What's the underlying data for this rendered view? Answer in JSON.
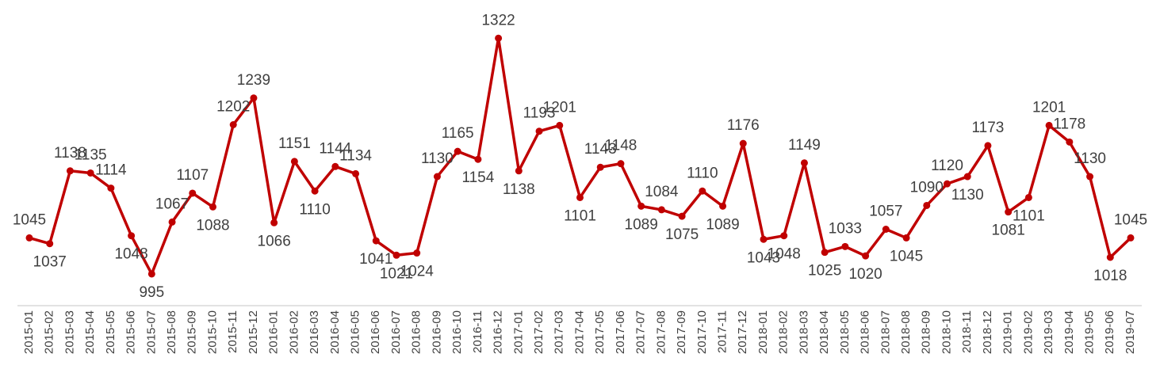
{
  "chart_data": {
    "type": "line",
    "x": [
      "2015-01",
      "2015-02",
      "2015-03",
      "2015-04",
      "2015-05",
      "2015-06",
      "2015-07",
      "2015-08",
      "2015-09",
      "2015-10",
      "2015-11",
      "2015-12",
      "2016-01",
      "2016-02",
      "2016-03",
      "2016-04",
      "2016-05",
      "2016-06",
      "2016-07",
      "2016-08",
      "2016-09",
      "2016-10",
      "2016-11",
      "2016-12",
      "2017-01",
      "2017-02",
      "2017-03",
      "2017-04",
      "2017-05",
      "2017-06",
      "2017-07",
      "2017-08",
      "2017-09",
      "2017-10",
      "2017-11",
      "2017-12",
      "2018-01",
      "2018-02",
      "2018-03",
      "2018-04",
      "2018-05",
      "2018-06",
      "2018-07",
      "2018-08",
      "2018-09",
      "2018-10",
      "2018-11",
      "2018-12",
      "2019-01",
      "2019-02",
      "2019-03",
      "2019-04",
      "2019-05",
      "2019-06",
      "2019-07"
    ],
    "series": [
      {
        "name": null,
        "color": "#c00000",
        "values": [
          1045,
          1037,
          1138,
          1135,
          1114,
          1048,
          995,
          1067,
          1107,
          1088,
          1202,
          1239,
          1066,
          1151,
          1110,
          1144,
          1134,
          1041,
          1021,
          1024,
          1130,
          1165,
          1154,
          1322,
          1138,
          1193,
          1201,
          1101,
          1143,
          1148,
          1089,
          1084,
          1075,
          1110,
          1089,
          1176,
          1043,
          1048,
          1149,
          1025,
          1033,
          1020,
          1057,
          1045,
          1090,
          1120,
          1130,
          1173,
          1081,
          1101,
          1201,
          1178,
          1130,
          1018,
          1045
        ]
      }
    ],
    "ylim": [
      951,
      1375
    ]
  }
}
